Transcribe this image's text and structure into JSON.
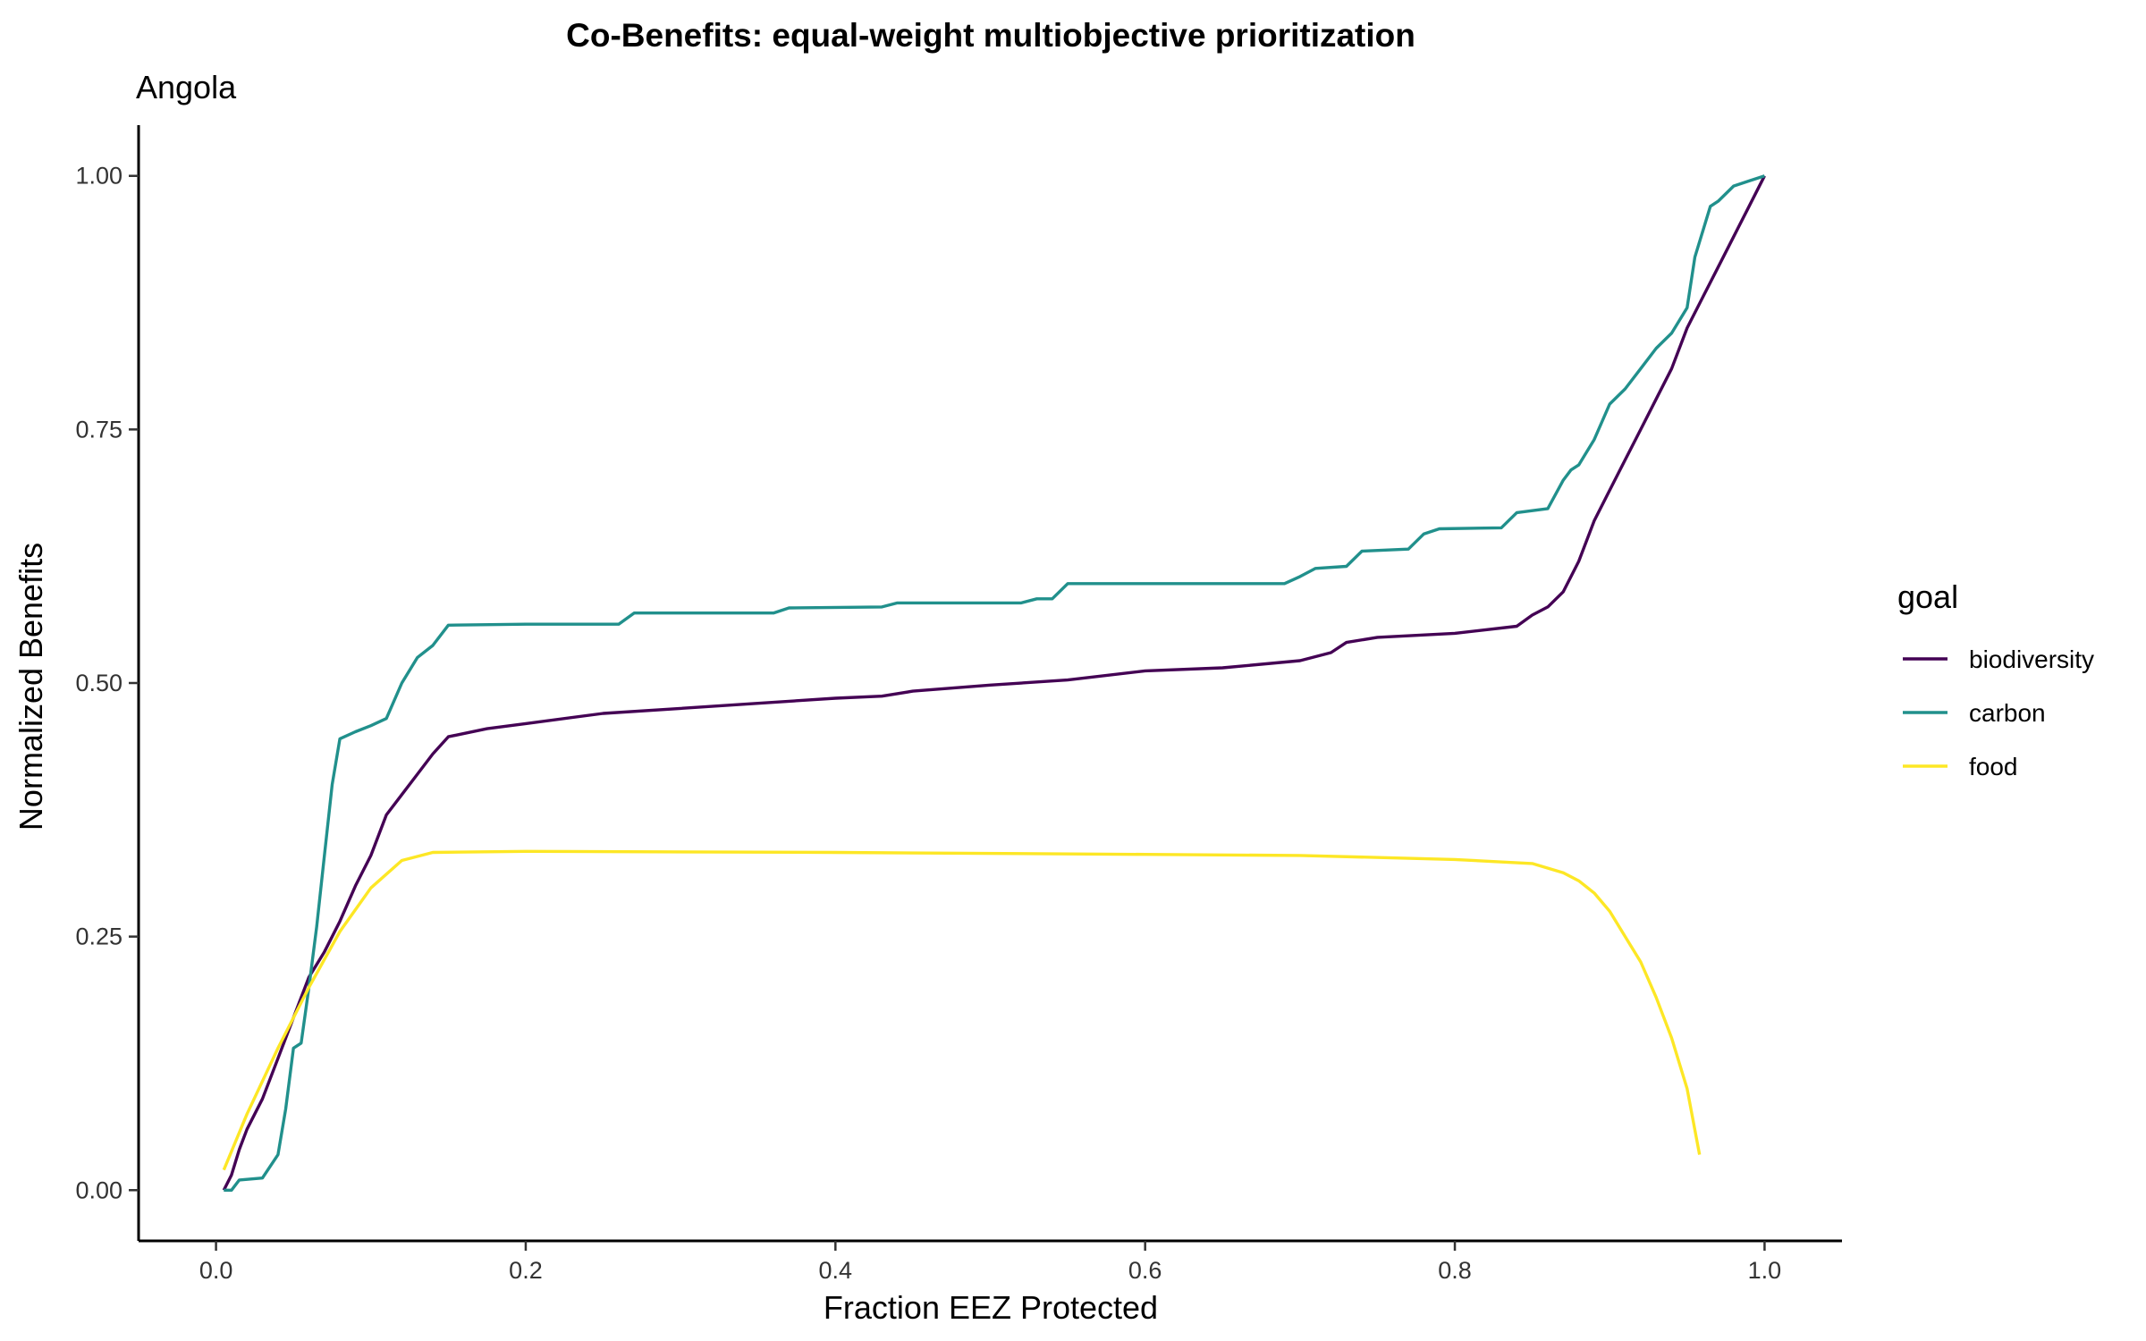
{
  "chart_data": {
    "type": "line",
    "title": "Co-Benefits: equal-weight multiobjective prioritization",
    "subtitle": "Angola",
    "xlabel": "Fraction EEZ Protected",
    "ylabel": "Normalized Benefits",
    "xlim": [
      -0.05,
      1.05
    ],
    "ylim": [
      -0.05,
      1.05
    ],
    "x_ticks": [
      0.0,
      0.2,
      0.4,
      0.6,
      0.8,
      1.0
    ],
    "x_tick_labels": [
      "0.0",
      "0.2",
      "0.4",
      "0.6",
      "0.8",
      "1.0"
    ],
    "y_ticks": [
      0.0,
      0.25,
      0.5,
      0.75,
      1.0
    ],
    "y_tick_labels": [
      "0.00",
      "0.25",
      "0.50",
      "0.75",
      "1.00"
    ],
    "grid": false,
    "legend": {
      "title": "goal",
      "position": "right"
    },
    "series": [
      {
        "name": "biodiversity",
        "color": "#440154",
        "points": [
          [
            0.005,
            0.0
          ],
          [
            0.01,
            0.015
          ],
          [
            0.015,
            0.04
          ],
          [
            0.02,
            0.06
          ],
          [
            0.03,
            0.09
          ],
          [
            0.04,
            0.13
          ],
          [
            0.05,
            0.17
          ],
          [
            0.06,
            0.21
          ],
          [
            0.07,
            0.235
          ],
          [
            0.08,
            0.265
          ],
          [
            0.09,
            0.3
          ],
          [
            0.1,
            0.33
          ],
          [
            0.11,
            0.37
          ],
          [
            0.12,
            0.39
          ],
          [
            0.13,
            0.41
          ],
          [
            0.14,
            0.43
          ],
          [
            0.15,
            0.447
          ],
          [
            0.175,
            0.455
          ],
          [
            0.2,
            0.46
          ],
          [
            0.25,
            0.47
          ],
          [
            0.3,
            0.475
          ],
          [
            0.35,
            0.48
          ],
          [
            0.4,
            0.485
          ],
          [
            0.43,
            0.487
          ],
          [
            0.45,
            0.492
          ],
          [
            0.5,
            0.498
          ],
          [
            0.55,
            0.503
          ],
          [
            0.6,
            0.512
          ],
          [
            0.65,
            0.515
          ],
          [
            0.7,
            0.522
          ],
          [
            0.72,
            0.53
          ],
          [
            0.73,
            0.54
          ],
          [
            0.75,
            0.545
          ],
          [
            0.8,
            0.549
          ],
          [
            0.84,
            0.556
          ],
          [
            0.85,
            0.567
          ],
          [
            0.86,
            0.575
          ],
          [
            0.87,
            0.59
          ],
          [
            0.88,
            0.62
          ],
          [
            0.89,
            0.66
          ],
          [
            0.9,
            0.69
          ],
          [
            0.91,
            0.72
          ],
          [
            0.92,
            0.75
          ],
          [
            0.93,
            0.78
          ],
          [
            0.94,
            0.81
          ],
          [
            0.95,
            0.85
          ],
          [
            0.96,
            0.88
          ],
          [
            0.97,
            0.91
          ],
          [
            0.98,
            0.94
          ],
          [
            0.99,
            0.97
          ],
          [
            1.0,
            1.0
          ]
        ]
      },
      {
        "name": "carbon",
        "color": "#21908C",
        "points": [
          [
            0.005,
            0.0
          ],
          [
            0.01,
            0.0
          ],
          [
            0.015,
            0.01
          ],
          [
            0.03,
            0.012
          ],
          [
            0.04,
            0.035
          ],
          [
            0.045,
            0.08
          ],
          [
            0.05,
            0.14
          ],
          [
            0.055,
            0.145
          ],
          [
            0.06,
            0.2
          ],
          [
            0.065,
            0.26
          ],
          [
            0.07,
            0.33
          ],
          [
            0.075,
            0.4
          ],
          [
            0.08,
            0.445
          ],
          [
            0.09,
            0.452
          ],
          [
            0.1,
            0.458
          ],
          [
            0.11,
            0.465
          ],
          [
            0.12,
            0.5
          ],
          [
            0.13,
            0.525
          ],
          [
            0.14,
            0.537
          ],
          [
            0.15,
            0.557
          ],
          [
            0.2,
            0.558
          ],
          [
            0.26,
            0.558
          ],
          [
            0.27,
            0.569
          ],
          [
            0.36,
            0.569
          ],
          [
            0.37,
            0.574
          ],
          [
            0.43,
            0.575
          ],
          [
            0.44,
            0.579
          ],
          [
            0.52,
            0.579
          ],
          [
            0.53,
            0.583
          ],
          [
            0.54,
            0.583
          ],
          [
            0.55,
            0.598
          ],
          [
            0.69,
            0.598
          ],
          [
            0.7,
            0.605
          ],
          [
            0.71,
            0.613
          ],
          [
            0.73,
            0.615
          ],
          [
            0.74,
            0.63
          ],
          [
            0.77,
            0.632
          ],
          [
            0.78,
            0.647
          ],
          [
            0.79,
            0.652
          ],
          [
            0.83,
            0.653
          ],
          [
            0.84,
            0.668
          ],
          [
            0.86,
            0.672
          ],
          [
            0.87,
            0.7
          ],
          [
            0.875,
            0.71
          ],
          [
            0.88,
            0.715
          ],
          [
            0.89,
            0.74
          ],
          [
            0.9,
            0.775
          ],
          [
            0.91,
            0.79
          ],
          [
            0.92,
            0.81
          ],
          [
            0.93,
            0.83
          ],
          [
            0.94,
            0.845
          ],
          [
            0.95,
            0.87
          ],
          [
            0.955,
            0.92
          ],
          [
            0.965,
            0.97
          ],
          [
            0.97,
            0.975
          ],
          [
            0.98,
            0.99
          ],
          [
            0.99,
            0.995
          ],
          [
            1.0,
            1.0
          ]
        ]
      },
      {
        "name": "food",
        "color": "#FDE725",
        "points": [
          [
            0.005,
            0.02
          ],
          [
            0.02,
            0.075
          ],
          [
            0.04,
            0.14
          ],
          [
            0.06,
            0.2
          ],
          [
            0.08,
            0.255
          ],
          [
            0.1,
            0.298
          ],
          [
            0.12,
            0.325
          ],
          [
            0.14,
            0.333
          ],
          [
            0.2,
            0.334
          ],
          [
            0.4,
            0.333
          ],
          [
            0.6,
            0.331
          ],
          [
            0.7,
            0.33
          ],
          [
            0.8,
            0.326
          ],
          [
            0.85,
            0.322
          ],
          [
            0.87,
            0.313
          ],
          [
            0.88,
            0.305
          ],
          [
            0.89,
            0.293
          ],
          [
            0.9,
            0.275
          ],
          [
            0.91,
            0.25
          ],
          [
            0.92,
            0.225
          ],
          [
            0.93,
            0.19
          ],
          [
            0.94,
            0.15
          ],
          [
            0.95,
            0.1
          ],
          [
            0.958,
            0.035
          ]
        ]
      }
    ]
  }
}
